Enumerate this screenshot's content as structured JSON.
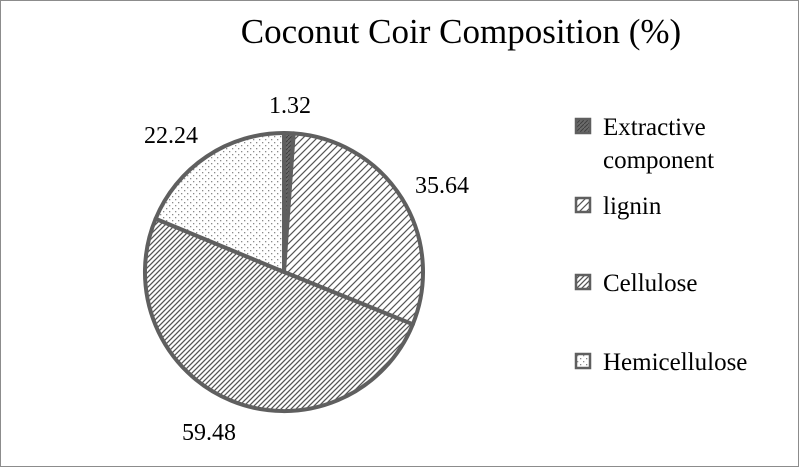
{
  "chart_data": {
    "type": "pie",
    "title": "Coconut Coir Composition (%)",
    "legend_position": "right",
    "slices": [
      {
        "label": "Extractive component",
        "legend_lines": [
          "Extractive",
          "component"
        ],
        "value": 1.32,
        "value_label": "1.32",
        "pattern": "dark-hatch"
      },
      {
        "label": "lignin",
        "legend_lines": [
          "lignin"
        ],
        "value": 35.64,
        "value_label": "35.64",
        "pattern": "light-diagonal-stripes"
      },
      {
        "label": "Cellulose",
        "legend_lines": [
          "Cellulose"
        ],
        "value": 59.48,
        "value_label": "59.48",
        "pattern": "dense-diagonal-stripes"
      },
      {
        "label": "Hemicellulose",
        "legend_lines": [
          "Hemicellulose"
        ],
        "value": 22.24,
        "value_label": "22.24",
        "pattern": "dots"
      }
    ],
    "colors": {
      "border": "#5f5f5f",
      "dark_hatch": "#6b6b6b",
      "stripe": "#555555",
      "dot": "#8a8a8a"
    }
  }
}
